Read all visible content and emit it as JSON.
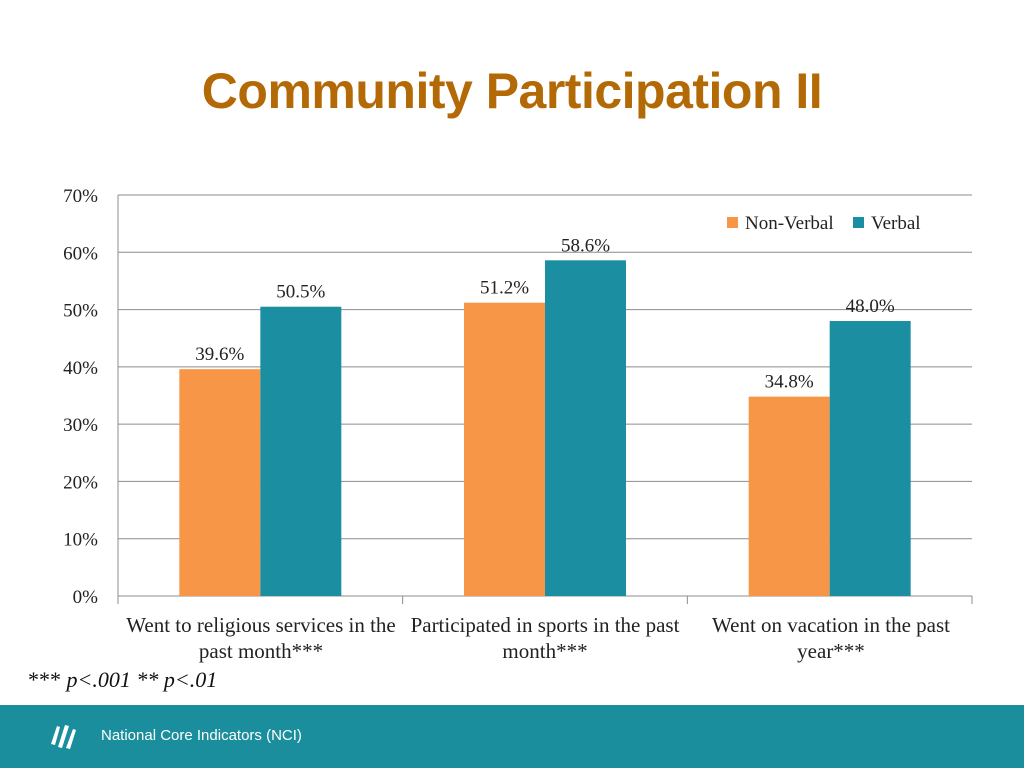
{
  "slide": {
    "title": "Community Participation II",
    "footnote_stars": "***",
    "footnote_p1": "p<.001",
    "footnote_stars2": "**",
    "footnote_p2": "p<.01"
  },
  "footer": {
    "text": "National Core Indicators (NCI)",
    "logo_icon": "nci-logo-icon",
    "background_color": "#1a8e9c"
  },
  "chart_data": {
    "type": "bar",
    "title": "",
    "xlabel": "",
    "ylabel": "",
    "ylim": [
      0,
      70
    ],
    "y_ticks": [
      "0%",
      "10%",
      "20%",
      "30%",
      "40%",
      "50%",
      "60%",
      "70%"
    ],
    "grid": true,
    "legend_position": "top-right",
    "categories": [
      "Went to religious services in the past month***",
      "Participated in sports in the past month***",
      "Went on vacation in the past year***"
    ],
    "series": [
      {
        "name": "Non-Verbal",
        "color": "#f79646",
        "values": [
          39.6,
          51.2,
          34.8
        ],
        "labels": [
          "39.6%",
          "51.2%",
          "34.8%"
        ]
      },
      {
        "name": "Verbal",
        "color": "#1b8fa1",
        "values": [
          50.5,
          58.6,
          48.0
        ],
        "labels": [
          "50.5%",
          "58.6%",
          "48.0%"
        ]
      }
    ]
  }
}
